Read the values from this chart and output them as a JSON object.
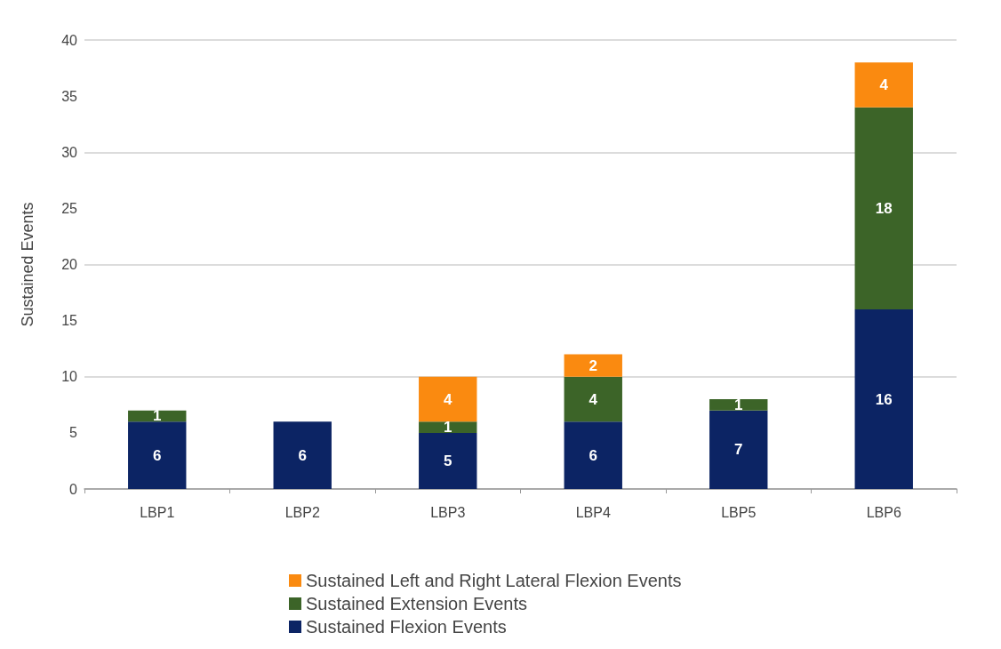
{
  "chart_data": {
    "type": "bar",
    "stacked": true,
    "ylabel": "Sustained Events",
    "categories": [
      "LBP1",
      "LBP2",
      "LBP3",
      "LBP4",
      "LBP5",
      "LBP6"
    ],
    "series": [
      {
        "name": "Sustained Flexion Events",
        "color": "#0c2464",
        "values": [
          6,
          6,
          5,
          6,
          7,
          16
        ],
        "value_labels": [
          "6",
          "6",
          "5",
          "6",
          "7",
          "16"
        ]
      },
      {
        "name": "Sustained Extension Events",
        "color": "#3c6428",
        "values": [
          1,
          0,
          1,
          4,
          1,
          18
        ],
        "value_labels": [
          "1",
          null,
          "1",
          "4",
          "1",
          "18"
        ]
      },
      {
        "name": "Sustained Left and Right Lateral Flexion Events",
        "color": "#fa8a10",
        "values": [
          0,
          0,
          4,
          2,
          0,
          4
        ],
        "value_labels": [
          null,
          null,
          "4",
          "2",
          null,
          "4"
        ]
      }
    ],
    "ylim": [
      0,
      40
    ],
    "yticks": [
      0,
      5,
      10,
      15,
      20,
      25,
      30,
      35,
      40
    ],
    "grid": "y",
    "legend": "bottom"
  }
}
